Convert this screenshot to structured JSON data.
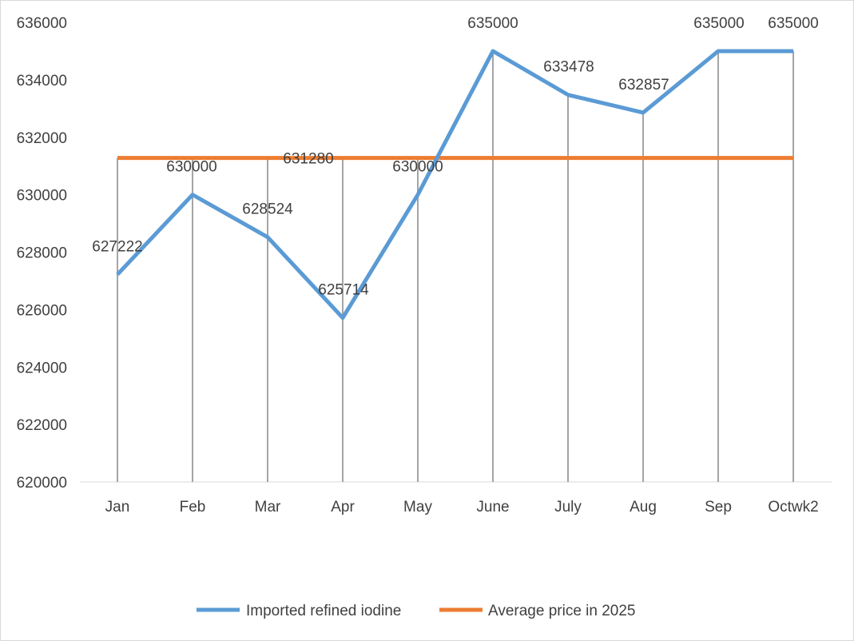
{
  "chart_data": {
    "type": "line",
    "title": "",
    "xlabel": "",
    "ylabel": "",
    "categories": [
      "Jan",
      "Feb",
      "Mar",
      "Apr",
      "May",
      "June",
      "July",
      "Aug",
      "Sep",
      "Octwk2"
    ],
    "series": [
      {
        "name": "Imported refined iodine",
        "color": "#5b9bd5",
        "values": [
          627222,
          630000,
          628524,
          625714,
          630000,
          635000,
          633478,
          632857,
          635000,
          635000
        ],
        "labels": [
          "627222",
          "630000",
          "628524",
          "625714",
          "630000",
          "635000",
          "633478",
          "632857",
          "635000",
          "635000"
        ]
      },
      {
        "name": "Average price in 2025",
        "color": "#ed7d31",
        "values": [
          631280,
          631280,
          631280,
          631280,
          631280,
          631280,
          631280,
          631280,
          631280,
          631280
        ],
        "label": "631280"
      }
    ],
    "ylim": [
      620000,
      636000
    ],
    "yticks": [
      "620000",
      "622000",
      "624000",
      "626000",
      "628000",
      "630000",
      "632000",
      "634000",
      "636000"
    ],
    "grid": false,
    "legend": "bottom"
  }
}
